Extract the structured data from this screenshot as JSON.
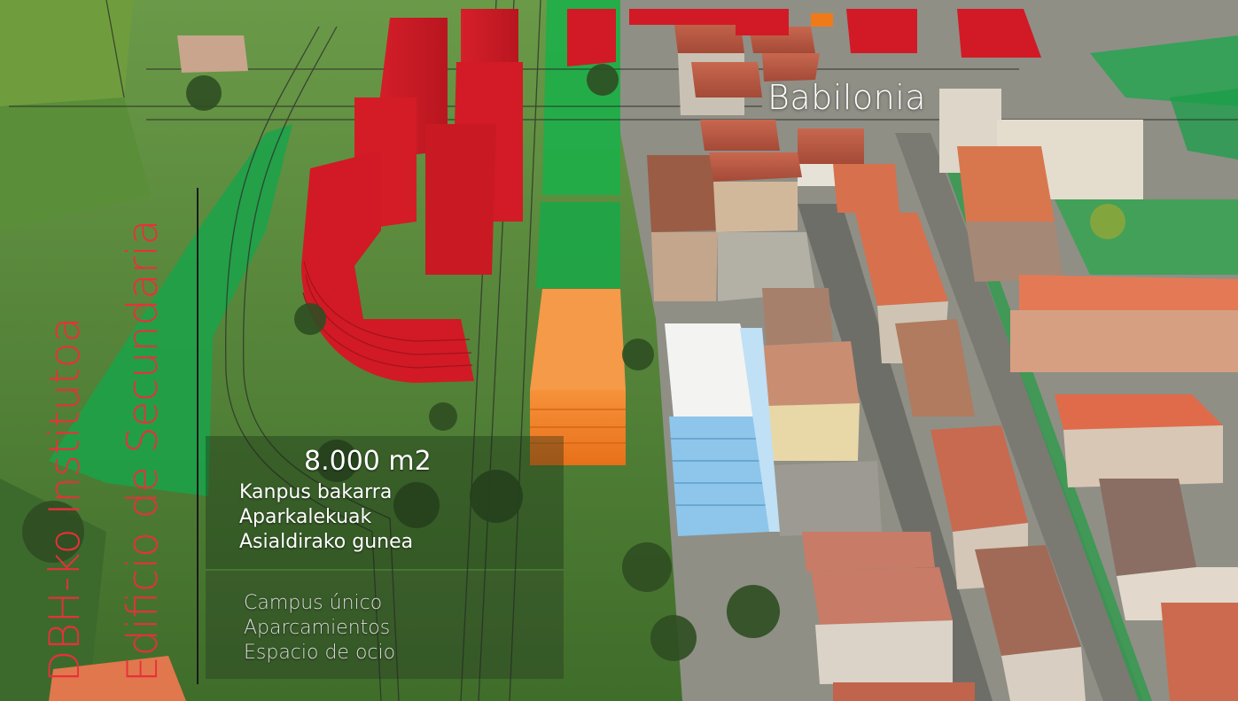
{
  "map": {
    "place_label": "Babilonia",
    "title_lines": [
      "DBH-ko Institutoa",
      "Edificio de Secundaria"
    ],
    "area": "8.000 m2",
    "features_eu": [
      "Kanpus bakarra",
      "Aparkalekuak",
      "Asialdirako gunea"
    ],
    "features_es": [
      "Campus único",
      "Aparcamientos",
      "Espacio de ocio"
    ]
  },
  "colors": {
    "planned_residential": "#e0232b",
    "planned_school": "#f07a1a",
    "green_zone": "#1aa34a",
    "title_red": "#e8303a"
  }
}
